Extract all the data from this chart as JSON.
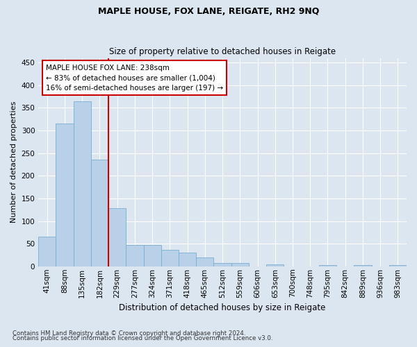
{
  "title": "MAPLE HOUSE, FOX LANE, REIGATE, RH2 9NQ",
  "subtitle": "Size of property relative to detached houses in Reigate",
  "xlabel": "Distribution of detached houses by size in Reigate",
  "ylabel": "Number of detached properties",
  "categories": [
    "41sqm",
    "88sqm",
    "135sqm",
    "182sqm",
    "229sqm",
    "277sqm",
    "324sqm",
    "371sqm",
    "418sqm",
    "465sqm",
    "512sqm",
    "559sqm",
    "606sqm",
    "653sqm",
    "700sqm",
    "748sqm",
    "795sqm",
    "842sqm",
    "889sqm",
    "936sqm",
    "983sqm"
  ],
  "values": [
    65,
    315,
    365,
    235,
    128,
    47,
    47,
    37,
    30,
    20,
    7,
    7,
    0,
    5,
    0,
    0,
    2,
    0,
    2,
    0,
    2
  ],
  "bar_color": "#b8d0e8",
  "bar_edge_color": "#7aaed0",
  "vline_x": 4,
  "vline_color": "#cc0000",
  "annotation_text": "MAPLE HOUSE FOX LANE: 238sqm\n← 83% of detached houses are smaller (1,004)\n16% of semi-detached houses are larger (197) →",
  "annotation_box_color": "#ffffff",
  "annotation_box_edge": "#cc0000",
  "ylim": [
    0,
    460
  ],
  "yticks": [
    0,
    50,
    100,
    150,
    200,
    250,
    300,
    350,
    400,
    450
  ],
  "footer1": "Contains HM Land Registry data © Crown copyright and database right 2024.",
  "footer2": "Contains public sector information licensed under the Open Government Licence v3.0.",
  "bg_color": "#dce6f0",
  "plot_bg_color": "#dce6f0",
  "title_fontsize": 9,
  "subtitle_fontsize": 8.5,
  "xlabel_fontsize": 8.5,
  "ylabel_fontsize": 8,
  "tick_fontsize": 7.5,
  "annot_fontsize": 7.5,
  "footer_fontsize": 6.2
}
